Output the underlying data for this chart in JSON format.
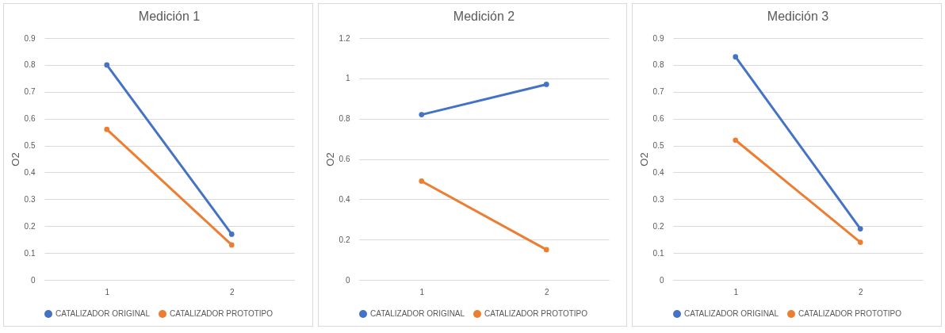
{
  "chart_data": [
    {
      "type": "line",
      "title": "Medición 1",
      "ylabel": "O2",
      "categories": [
        "1",
        "2"
      ],
      "ylim": [
        0,
        0.9
      ],
      "yticks": [
        0,
        0.1,
        0.2,
        0.3,
        0.4,
        0.5,
        0.6,
        0.7,
        0.8,
        0.9
      ],
      "grid": "y",
      "legend": "bottom",
      "marker": "circle",
      "series": [
        {
          "name": "CATALIZADOR ORIGINAL",
          "color": "#4472c4",
          "values": [
            0.8,
            0.17
          ]
        },
        {
          "name": "CATALIZADOR PROTOTIPO",
          "color": "#ed7d31",
          "values": [
            0.56,
            0.13
          ]
        }
      ]
    },
    {
      "type": "line",
      "title": "Medición 2",
      "ylabel": "O2",
      "categories": [
        "1",
        "2"
      ],
      "ylim": [
        0,
        1.2
      ],
      "yticks": [
        0,
        0.2,
        0.4,
        0.6,
        0.8,
        1,
        1.2
      ],
      "grid": "y",
      "legend": "bottom",
      "marker": "circle",
      "series": [
        {
          "name": "CATALIZADOR ORIGINAL",
          "color": "#4472c4",
          "values": [
            0.82,
            0.97
          ]
        },
        {
          "name": "CATALIZADOR PROTOTIPO",
          "color": "#ed7d31",
          "values": [
            0.49,
            0.15
          ]
        }
      ]
    },
    {
      "type": "line",
      "title": "Medición 3",
      "ylabel": "O2",
      "categories": [
        "1",
        "2"
      ],
      "ylim": [
        0,
        0.9
      ],
      "yticks": [
        0,
        0.1,
        0.2,
        0.3,
        0.4,
        0.5,
        0.6,
        0.7,
        0.8,
        0.9
      ],
      "grid": "y",
      "legend": "bottom",
      "marker": "circle",
      "series": [
        {
          "name": "CATALIZADOR ORIGINAL",
          "color": "#4472c4",
          "values": [
            0.83,
            0.19
          ]
        },
        {
          "name": "CATALIZADOR PROTOTIPO",
          "color": "#ed7d31",
          "values": [
            0.52,
            0.14
          ]
        }
      ]
    }
  ]
}
